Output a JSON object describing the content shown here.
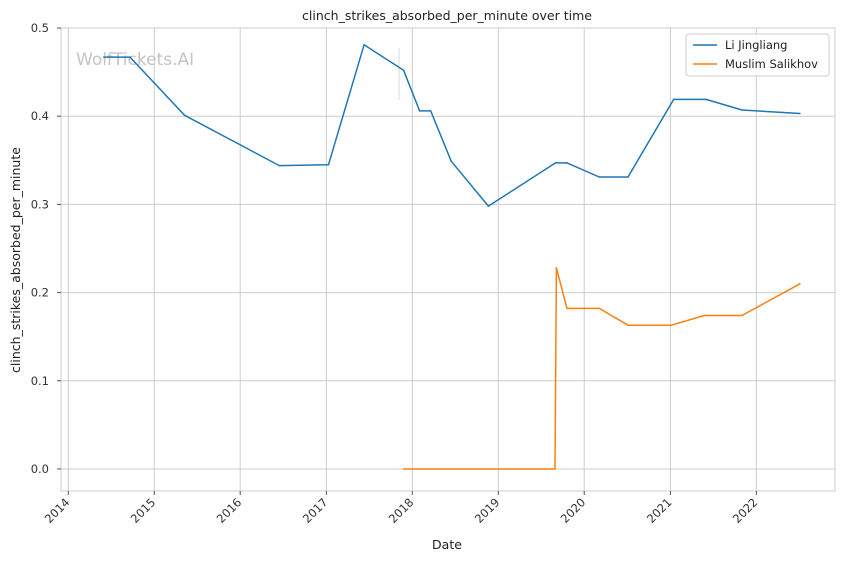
{
  "chart_data": {
    "type": "line",
    "title": "clinch_strikes_absorbed_per_minute over time",
    "xlabel": "Date",
    "ylabel": "clinch_strikes_absorbed_per_minute",
    "watermark": "WolfTickets.AI",
    "grid": true,
    "legend_placement": "top-right",
    "x_ticks": [
      "2014",
      "2015",
      "2016",
      "2017",
      "2018",
      "2019",
      "2020",
      "2021",
      "2022"
    ],
    "y_ticks": [
      "0.0",
      "0.1",
      "0.2",
      "0.3",
      "0.4",
      "0.5"
    ],
    "xlim": [
      "2013-12-01",
      "2022-12-01"
    ],
    "ylim": [
      -0.025,
      0.5
    ],
    "series": [
      {
        "name": "Li Jingliang",
        "color": "#1f77b4",
        "points": [
          [
            "2014-06-01",
            0.467
          ],
          [
            "2014-09-20",
            0.467
          ],
          [
            "2015-05-10",
            0.401
          ],
          [
            "2016-06-15",
            0.344
          ],
          [
            "2017-01-10",
            0.345
          ],
          [
            "2017-06-10",
            0.481
          ],
          [
            "2017-11-25",
            0.452
          ],
          [
            "2018-02-01",
            0.406
          ],
          [
            "2018-03-20",
            0.406
          ],
          [
            "2018-06-15",
            0.349
          ],
          [
            "2018-11-20",
            0.298
          ],
          [
            "2019-09-01",
            0.347
          ],
          [
            "2019-10-20",
            0.347
          ],
          [
            "2020-03-05",
            0.331
          ],
          [
            "2020-07-05",
            0.331
          ],
          [
            "2021-01-15",
            0.419
          ],
          [
            "2021-06-01",
            0.419
          ],
          [
            "2021-11-01",
            0.407
          ],
          [
            "2022-07-05",
            0.403
          ]
        ]
      },
      {
        "name": "Muslim Salikhov",
        "color": "#ff7f0e",
        "points": [
          [
            "2017-11-25",
            0.0
          ],
          [
            "2019-08-30",
            0.0
          ],
          [
            "2019-09-05",
            0.228
          ],
          [
            "2019-10-20",
            0.182
          ],
          [
            "2020-03-05",
            0.182
          ],
          [
            "2020-07-05",
            0.163
          ],
          [
            "2021-01-05",
            0.163
          ],
          [
            "2021-05-25",
            0.174
          ],
          [
            "2021-11-01",
            0.174
          ],
          [
            "2022-07-05",
            0.21
          ]
        ]
      }
    ]
  }
}
